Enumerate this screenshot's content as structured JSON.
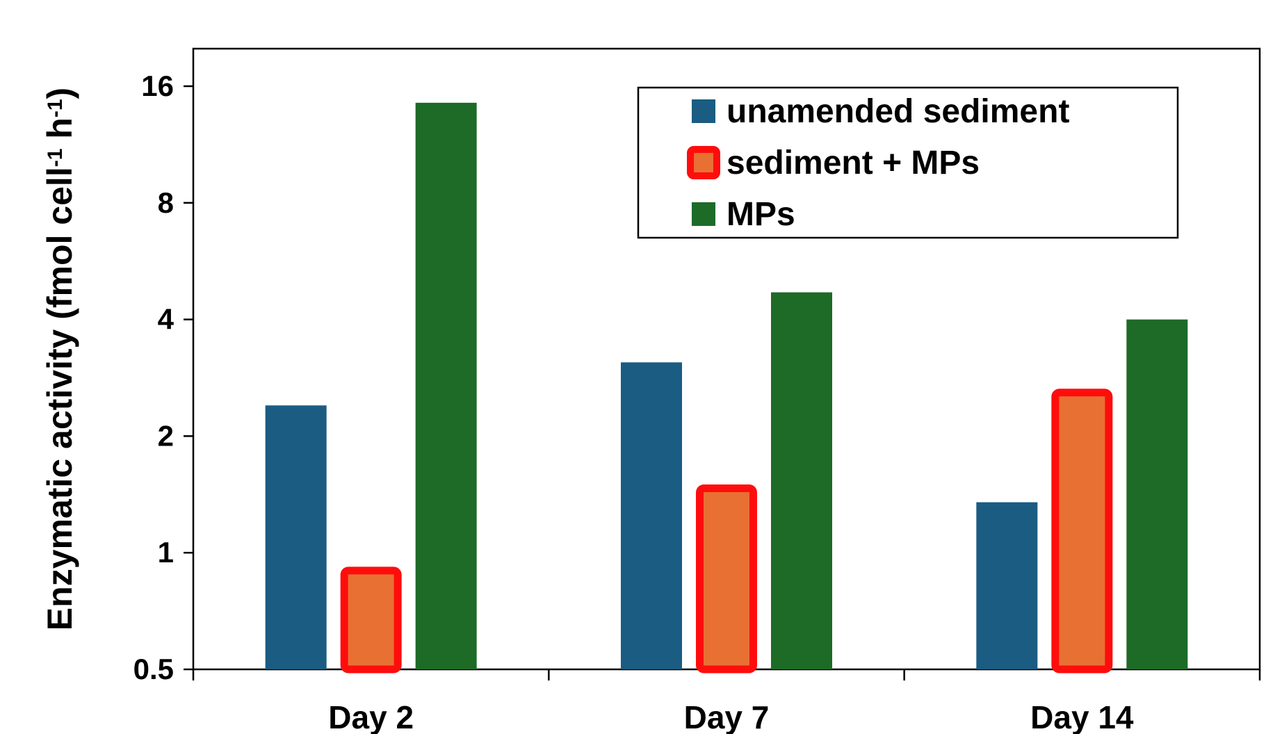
{
  "chart_data": {
    "type": "bar",
    "title": "",
    "xlabel": "",
    "ylabel": "Enzymatic activity (fmol cell",
    "ylabel_parts": [
      {
        "text": "Enzymatic activity (fmol cell"
      },
      {
        "text": "-1",
        "sup": true
      },
      {
        "text": " h"
      },
      {
        "text": "-1",
        "sup": true
      },
      {
        "text": ")"
      }
    ],
    "y_scale": "log2",
    "ylim": [
      0.5,
      20
    ],
    "yticks": [
      0.5,
      1,
      2,
      4,
      8,
      16
    ],
    "ytick_labels": [
      "0.5",
      "1",
      "2",
      "4",
      "8",
      "16"
    ],
    "categories": [
      "Day 2",
      "Day 7",
      "Day 14"
    ],
    "series": [
      {
        "name": "unamended sediment",
        "values": [
          2.4,
          3.1,
          1.35
        ],
        "color": "#1a5c82",
        "stroke": "none"
      },
      {
        "name": "sediment + MPs",
        "values": [
          0.92,
          1.5,
          2.65
        ],
        "color": "#e87033",
        "stroke": "#ff0d0d"
      },
      {
        "name": "MPs",
        "values": [
          14.5,
          4.7,
          4.0
        ],
        "color": "#1d6b27",
        "stroke": "none"
      }
    ],
    "legend": {
      "position": "top-right"
    },
    "grid": false
  }
}
